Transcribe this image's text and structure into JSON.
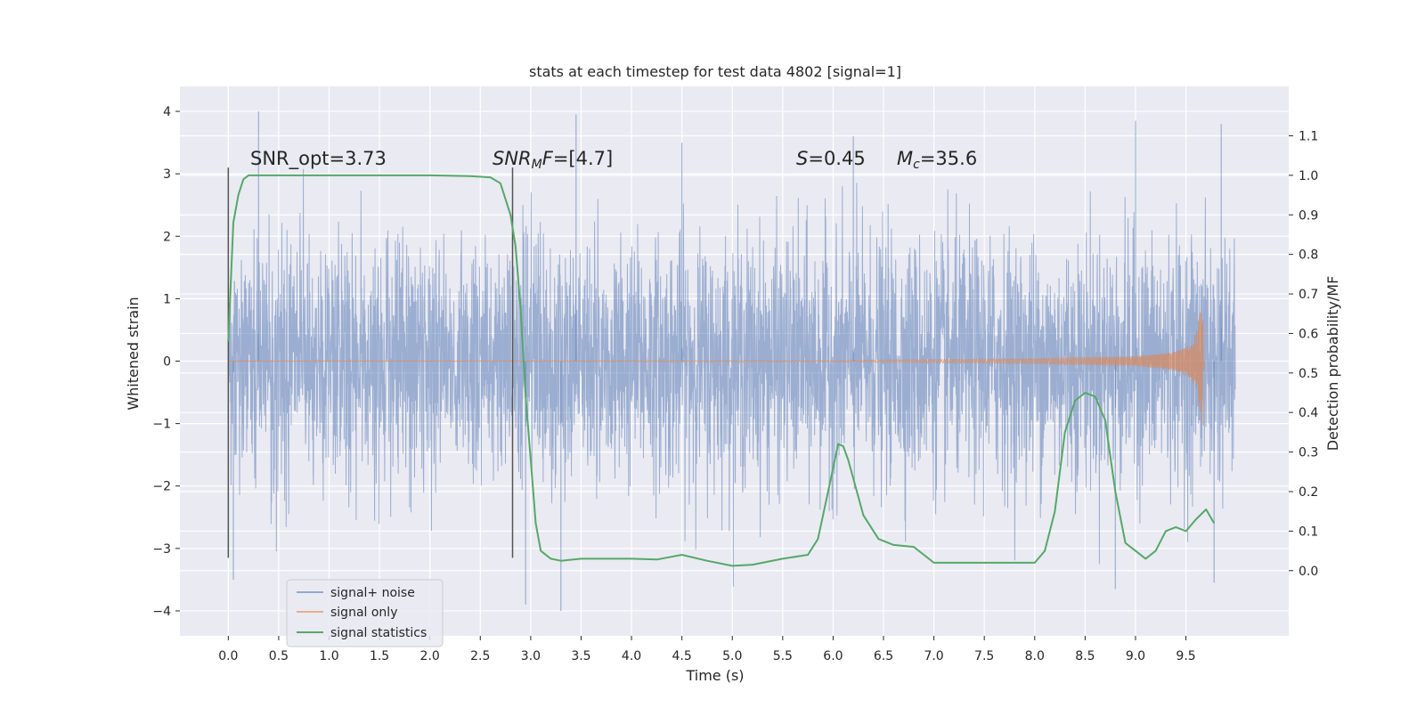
{
  "chart_data": {
    "type": "line",
    "title": "stats at each timestep for test data 4802 [signal=1]",
    "xlabel": "Time (s)",
    "ylabel": "Whitened strain",
    "y2label": "Detection probability/MF",
    "xlim": [
      -0.48,
      10.52
    ],
    "ylim": [
      -4.4,
      4.4
    ],
    "y2lim": [
      -0.165,
      1.225
    ],
    "xticks": [
      0.0,
      0.5,
      1.0,
      1.5,
      2.0,
      2.5,
      3.0,
      3.5,
      4.0,
      4.5,
      5.0,
      5.5,
      6.0,
      6.5,
      7.0,
      7.5,
      8.0,
      8.5,
      9.0,
      9.5
    ],
    "xtick_labels": [
      "0.0",
      "0.5",
      "1.0",
      "1.5",
      "2.0",
      "2.5",
      "3.0",
      "3.5",
      "4.0",
      "4.5",
      "5.0",
      "5.5",
      "6.0",
      "6.5",
      "7.0",
      "7.5",
      "8.0",
      "8.5",
      "9.0",
      "9.5"
    ],
    "yticks": [
      -4,
      -3,
      -2,
      -1,
      0,
      1,
      2,
      3,
      4
    ],
    "ytick_labels": [
      "−4",
      "−3",
      "−2",
      "−1",
      "0",
      "1",
      "2",
      "3",
      "4"
    ],
    "y2ticks": [
      0.0,
      0.1,
      0.2,
      0.3,
      0.4,
      0.5,
      0.6,
      0.7,
      0.8,
      0.9,
      1.0,
      1.1
    ],
    "y2tick_labels": [
      "0.0",
      "0.1",
      "0.2",
      "0.3",
      "0.4",
      "0.5",
      "0.6",
      "0.7",
      "0.8",
      "0.9",
      "1.0",
      "1.1"
    ],
    "grid": true,
    "legend_position": "lower-left",
    "series": [
      {
        "name": "signal+ noise",
        "axis": "left",
        "color": "#4c72b0",
        "x_range": [
          0.0,
          9.99
        ],
        "typical_envelope": [
          -2.5,
          2.5
        ],
        "extreme_points": [
          [
            0.3,
            4.0
          ],
          [
            0.05,
            -3.5
          ],
          [
            3.45,
            3.95
          ],
          [
            3.3,
            -4.0
          ],
          [
            2.95,
            -3.9
          ],
          [
            9.0,
            3.85
          ],
          [
            8.8,
            -3.65
          ],
          [
            9.85,
            3.8
          ],
          [
            9.78,
            -3.55
          ],
          [
            4.5,
            3.5
          ],
          [
            6.2,
            3.6
          ]
        ]
      },
      {
        "name": "signal only",
        "axis": "left",
        "color": "#dd8452",
        "x": [
          0.0,
          6.0,
          8.0,
          9.0,
          9.4,
          9.55,
          9.6,
          9.64,
          9.66,
          9.68
        ],
        "amplitude": [
          0.0,
          0.01,
          0.04,
          0.08,
          0.15,
          0.28,
          0.45,
          0.75,
          1.05,
          0.0
        ]
      },
      {
        "name": "signal statistics",
        "axis": "right",
        "color": "#55a868",
        "x": [
          0.0,
          0.05,
          0.1,
          0.15,
          0.2,
          0.3,
          0.5,
          1.0,
          1.5,
          2.0,
          2.4,
          2.6,
          2.7,
          2.8,
          2.85,
          2.9,
          2.95,
          3.0,
          3.05,
          3.1,
          3.2,
          3.3,
          3.5,
          4.0,
          4.25,
          4.5,
          4.75,
          5.0,
          5.2,
          5.5,
          5.75,
          5.85,
          5.95,
          6.05,
          6.1,
          6.15,
          6.3,
          6.45,
          6.6,
          6.8,
          7.0,
          7.5,
          8.0,
          8.1,
          8.2,
          8.3,
          8.4,
          8.5,
          8.6,
          8.7,
          8.8,
          8.9,
          9.0,
          9.1,
          9.2,
          9.3,
          9.4,
          9.5,
          9.6,
          9.7,
          9.78
        ],
        "values": [
          0.58,
          0.88,
          0.95,
          0.99,
          1.0,
          1.0,
          1.0,
          1.0,
          1.0,
          1.0,
          0.998,
          0.995,
          0.98,
          0.9,
          0.82,
          0.66,
          0.44,
          0.28,
          0.12,
          0.05,
          0.03,
          0.025,
          0.03,
          0.03,
          0.028,
          0.04,
          0.025,
          0.012,
          0.015,
          0.03,
          0.04,
          0.08,
          0.2,
          0.32,
          0.315,
          0.28,
          0.14,
          0.08,
          0.065,
          0.06,
          0.02,
          0.02,
          0.02,
          0.05,
          0.15,
          0.35,
          0.43,
          0.45,
          0.44,
          0.38,
          0.2,
          0.07,
          0.05,
          0.03,
          0.05,
          0.1,
          0.11,
          0.1,
          0.13,
          0.155,
          0.12
        ]
      }
    ],
    "vertical_markers": [
      {
        "x": 0.0,
        "y_top": 3.1,
        "y_bottom": -3.15,
        "color": "#555555"
      },
      {
        "x": 2.82,
        "y_top": 3.1,
        "y_bottom": -3.15,
        "color": "#555555"
      }
    ],
    "annotations": [
      {
        "id": "snr-opt",
        "text": "SNR_opt=3.73",
        "x": 0.2,
        "y": 3.2
      },
      {
        "id": "snr-mf",
        "text": "SNR_MF=[4.7]",
        "x": 2.6,
        "y": 3.2
      },
      {
        "id": "s-value",
        "text": "S=0.45",
        "x": 5.6,
        "y": 3.2
      },
      {
        "id": "mc-value",
        "text": "M_c=35.6",
        "x": 6.6,
        "y": 3.2
      }
    ]
  }
}
